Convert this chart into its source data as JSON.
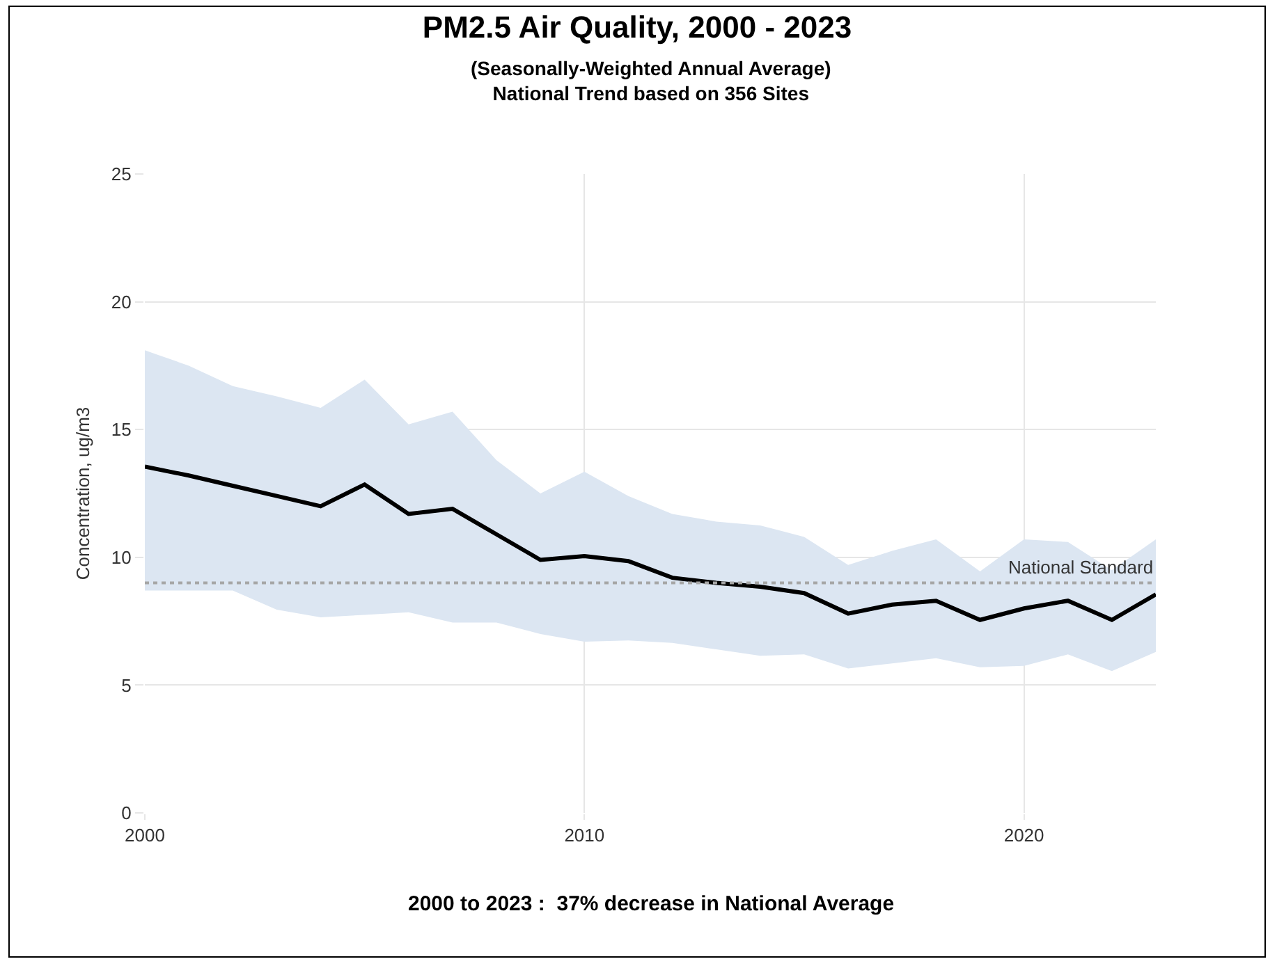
{
  "chart_data": {
    "type": "line",
    "title": "PM2.5 Air Quality, 2000 - 2023",
    "subtitle": "(Seasonally-Weighted Annual Average)\nNational Trend based on 356 Sites",
    "ylabel": "Concentration, ug/m3",
    "x": [
      2000,
      2001,
      2002,
      2003,
      2004,
      2005,
      2006,
      2007,
      2008,
      2009,
      2010,
      2011,
      2012,
      2013,
      2014,
      2015,
      2016,
      2017,
      2018,
      2019,
      2020,
      2021,
      2022,
      2023
    ],
    "series": [
      {
        "color": "#000000",
        "values": [
          13.55,
          13.2,
          12.8,
          12.4,
          12.0,
          12.85,
          11.7,
          11.9,
          10.9,
          9.9,
          10.05,
          9.85,
          9.2,
          9.0,
          8.85,
          8.6,
          7.8,
          8.15,
          8.3,
          7.55,
          8.0,
          8.3,
          7.55,
          8.55
        ],
        "lower": [
          8.7,
          8.7,
          8.7,
          7.95,
          7.65,
          7.75,
          7.85,
          7.45,
          7.45,
          7.0,
          6.7,
          6.75,
          6.65,
          6.4,
          6.15,
          6.2,
          5.65,
          5.85,
          6.05,
          5.7,
          5.75,
          6.2,
          5.55,
          6.3
        ],
        "upper": [
          18.1,
          17.5,
          16.7,
          16.3,
          15.85,
          16.95,
          15.2,
          15.7,
          13.8,
          12.5,
          13.35,
          12.4,
          11.7,
          11.4,
          11.25,
          10.8,
          9.7,
          10.25,
          10.7,
          9.45,
          10.7,
          10.6,
          9.5,
          10.7
        ]
      }
    ],
    "xlim": [
      2000,
      2023
    ],
    "xticks": [
      2000,
      2010,
      2020
    ],
    "ylim": [
      0,
      25
    ],
    "yticks": [
      0,
      5,
      10,
      15,
      20,
      25
    ],
    "grid": true,
    "marker": "none",
    "line_style": "solid",
    "ref_lines": [
      {
        "axis": "y",
        "value": 9,
        "label": "National Standard",
        "color": "#a6a6a6",
        "line_style": "dotted"
      }
    ],
    "annotations": [
      "2000 to 2023 :  37% decrease in National Average"
    ]
  }
}
